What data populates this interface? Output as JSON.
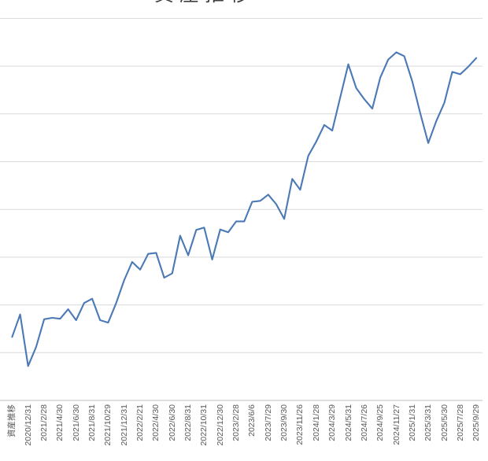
{
  "chart": {
    "cropped_title_fragment": "資産推移",
    "colors": {
      "line": "#4a79b5",
      "gridline": "#d9d9d9",
      "axis_line": "#bfbfbf",
      "tick_label": "#595959",
      "title": "#3f3f3f"
    }
  },
  "chart_data": {
    "type": "line",
    "title": "資産推移",
    "title_note": "chart title is cropped at the top edge of the screenshot; only bottom tips of glyphs visible",
    "xlabel": "",
    "ylabel": "",
    "legend": "none",
    "grid": "horizontal",
    "y_axis_tick_labels": "not visible (cropped off left edge)",
    "ylim_gridline_units": [
      0,
      8
    ],
    "x_tick_label_rotation_deg": -90,
    "points_per_tick": 2,
    "n_points": 59,
    "x_tick_labels": [
      "資産推移",
      "2020/12/31",
      "2021/2/28",
      "2021/4/30",
      "2021/6/30",
      "2021/8/31",
      "2021/10/29",
      "2021/12/31",
      "2022/2/21",
      "2022/4/30",
      "2022/6/30",
      "2022/8/31",
      "2022/10/31",
      "2022/12/30",
      "2023/2/28",
      "2023/6/6",
      "2023/7/29",
      "2023/9/30",
      "2023/11/26",
      "2024/1/28",
      "2024/3/29",
      "2024/5/31",
      "2024/7/26",
      "2024/9/25",
      "2024/11/27",
      "2025/1/31",
      "2025/3/31",
      "2025/5/30",
      "2025/7/28",
      "2025/9/29"
    ],
    "values_gridline_units": [
      1.33,
      1.8,
      0.72,
      1.12,
      1.7,
      1.73,
      1.71,
      1.91,
      1.68,
      2.04,
      2.13,
      1.68,
      1.63,
      2.04,
      2.52,
      2.9,
      2.74,
      3.07,
      3.09,
      2.57,
      2.66,
      3.45,
      3.04,
      3.57,
      3.62,
      2.95,
      3.58,
      3.52,
      3.75,
      3.75,
      4.16,
      4.18,
      4.31,
      4.11,
      3.8,
      4.64,
      4.41,
      5.12,
      5.42,
      5.77,
      5.65,
      6.35,
      7.04,
      6.54,
      6.31,
      6.11,
      6.76,
      7.14,
      7.29,
      7.21,
      6.68,
      6.01,
      5.39,
      5.85,
      6.23,
      6.88,
      6.83,
      6.99,
      7.17
    ]
  }
}
